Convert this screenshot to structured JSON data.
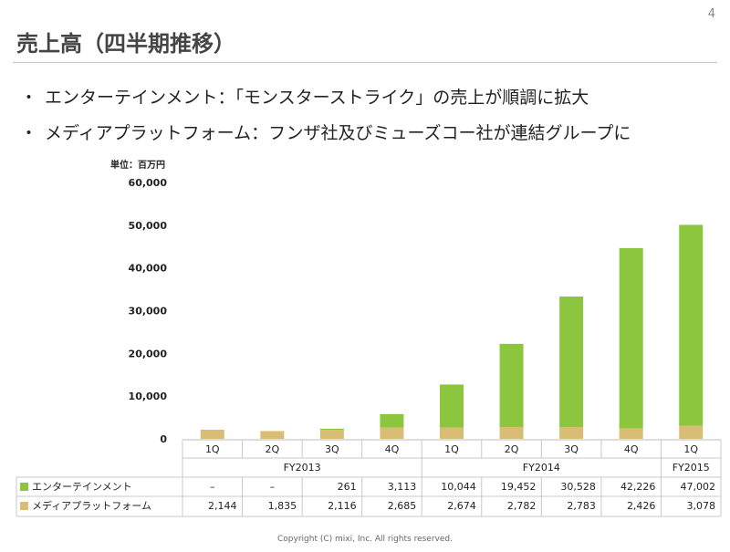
{
  "page": {
    "number": "4",
    "title": "売上高（四半期推移）",
    "bullet_mark": "・",
    "bullets": [
      "エンターテインメント：「モンスターストライク」の売上が順調に拡大",
      "メディアプラットフォーム：フンザ社及びミューズコー社が連結グループに"
    ],
    "copyright": "Copyright (C) mixi, Inc. All rights reserved."
  },
  "chart_data": {
    "type": "bar",
    "stacked": true,
    "unit_label": "単位：百万円",
    "categories": [
      "1Q",
      "2Q",
      "3Q",
      "4Q",
      "1Q",
      "2Q",
      "3Q",
      "4Q",
      "1Q"
    ],
    "groups": [
      {
        "label": "FY2013",
        "start": 0,
        "end": 3
      },
      {
        "label": "FY2014",
        "start": 4,
        "end": 7
      },
      {
        "label": "FY2015",
        "start": 8,
        "end": 8
      }
    ],
    "yticks": [
      0,
      10000,
      20000,
      30000,
      40000,
      50000,
      60000
    ],
    "ytick_labels": [
      "0",
      "10,000",
      "20,000",
      "30,000",
      "40,000",
      "50,000",
      "60,000"
    ],
    "ylim": [
      0,
      60000
    ],
    "series": [
      {
        "name": "メディアプラットフォーム",
        "color": "#d9bd75",
        "values": [
          2144,
          1835,
          2116,
          2685,
          2674,
          2782,
          2783,
          2426,
          3078
        ],
        "labels": [
          "2,144",
          "1,835",
          "2,116",
          "2,685",
          "2,674",
          "2,782",
          "2,783",
          "2,426",
          "3,078"
        ]
      },
      {
        "name": "エンターテインメント",
        "color": "#8cc63f",
        "values": [
          0,
          0,
          261,
          3113,
          10044,
          19452,
          30528,
          42226,
          47002
        ],
        "labels": [
          "–",
          "–",
          "261",
          "3,113",
          "10,044",
          "19,452",
          "30,528",
          "42,226",
          "47,002"
        ]
      }
    ],
    "table_order": [
      1,
      0
    ]
  }
}
